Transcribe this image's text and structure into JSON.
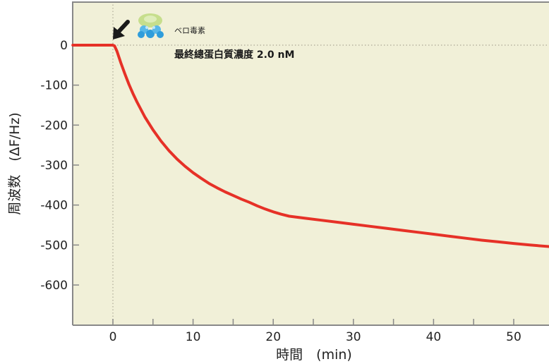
{
  "chart_data": {
    "type": "line",
    "xlabel": "時間　(min)",
    "ylabel": "周波数　(ΔF/Hz)",
    "xlim": [
      -5,
      54.5
    ],
    "ylim": [
      -700,
      100
    ],
    "xticks": [
      0,
      10,
      20,
      30,
      40,
      50
    ],
    "yticks": [
      0,
      -100,
      -200,
      -300,
      -400,
      -500,
      -600
    ],
    "grid": false,
    "background_color": "#f1f0d8",
    "line_color": "#e63127",
    "series": [
      {
        "x": [
          -5,
          -1,
          0,
          0.2,
          0.5,
          1,
          1.5,
          2,
          2.5,
          3,
          4,
          5,
          6,
          7,
          8,
          9,
          10,
          11,
          12,
          13,
          14,
          15,
          16,
          17,
          18,
          19,
          20,
          21,
          22,
          24,
          26,
          28,
          30,
          32,
          34,
          36,
          38,
          40,
          42,
          44,
          46,
          48,
          50,
          52,
          54.5
        ],
        "y": [
          0,
          0,
          0,
          -2,
          -15,
          -45,
          -72,
          -98,
          -121,
          -142,
          -180,
          -212,
          -240,
          -264,
          -285,
          -303,
          -319,
          -333,
          -346,
          -357,
          -367,
          -376,
          -385,
          -393,
          -402,
          -410,
          -417,
          -423,
          -428,
          -433,
          -438,
          -443,
          -448,
          -453,
          -458,
          -463,
          -468,
          -473,
          -478,
          -483,
          -488,
          -492,
          -496,
          -500,
          -504
        ]
      }
    ],
    "annotations": {
      "injection_label": "ベロ毒素",
      "concentration_label": "最終總蛋白質濃度 2.0 nM",
      "injection_time": 0
    }
  }
}
